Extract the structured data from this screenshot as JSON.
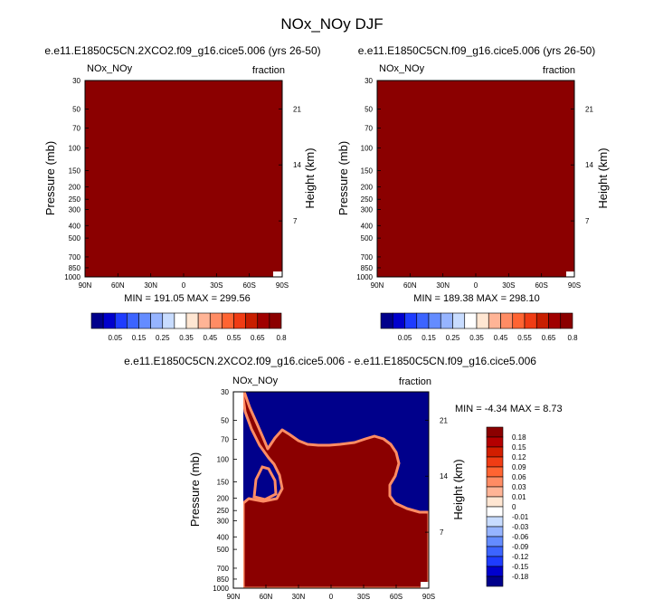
{
  "figure_title": "NOx_NOy DJF",
  "colors": {
    "field": "#8b0000",
    "background": "#ffffff",
    "diff_high": "#8b0000",
    "diff_low": "#00008b"
  },
  "chart_data": [
    {
      "type": "heatmap",
      "title": "e.e11.E1850C5CN.2XCO2.f09_g16.cice5.006 (yrs 26-50)",
      "left_label": "NOx_NOy",
      "right_label": "fraction",
      "ylabel": "Pressure (mb)",
      "y2label": "Height (km)",
      "xticks": [
        "90N",
        "60N",
        "30N",
        "0",
        "30S",
        "60S",
        "90S"
      ],
      "yticks": [
        "30",
        "50",
        "70",
        "100",
        "150",
        "200",
        "250",
        "300",
        "400",
        "500",
        "700",
        "850",
        "1000"
      ],
      "y2ticks": [
        "21",
        "14",
        "7"
      ],
      "stats": "MIN = 191.05   MAX = 299.56",
      "colorbar_labels": [
        "0.05",
        "0.15",
        "0.25",
        "0.35",
        "0.45",
        "0.55",
        "0.65",
        "0.8"
      ],
      "colorbar_colors": [
        "#00008b",
        "#0000cd",
        "#1e3cff",
        "#3c64ff",
        "#648cff",
        "#96b4ff",
        "#c8dcff",
        "#ffffff",
        "#ffe6d2",
        "#ffb496",
        "#ff8c64",
        "#ff6432",
        "#f03c14",
        "#c81e00",
        "#a00000",
        "#8b0000"
      ]
    },
    {
      "type": "heatmap",
      "title": "e.e11.E1850C5CN.f09_g16.cice5.006 (yrs 26-50)",
      "left_label": "NOx_NOy",
      "right_label": "fraction",
      "ylabel": "Pressure (mb)",
      "y2label": "Height (km)",
      "xticks": [
        "90N",
        "60N",
        "30N",
        "0",
        "30S",
        "60S",
        "90S"
      ],
      "yticks": [
        "30",
        "50",
        "70",
        "100",
        "150",
        "200",
        "250",
        "300",
        "400",
        "500",
        "700",
        "850",
        "1000"
      ],
      "y2ticks": [
        "21",
        "14",
        "7"
      ],
      "stats": "MIN = 189.38   MAX = 298.10",
      "colorbar_labels": [
        "0.05",
        "0.15",
        "0.25",
        "0.35",
        "0.45",
        "0.55",
        "0.65",
        "0.8"
      ],
      "colorbar_colors": [
        "#00008b",
        "#0000cd",
        "#1e3cff",
        "#3c64ff",
        "#648cff",
        "#96b4ff",
        "#c8dcff",
        "#ffffff",
        "#ffe6d2",
        "#ffb496",
        "#ff8c64",
        "#ff6432",
        "#f03c14",
        "#c81e00",
        "#a00000",
        "#8b0000"
      ]
    },
    {
      "type": "heatmap",
      "title": "e.e11.E1850C5CN.2XCO2.f09_g16.cice5.006 - e.e11.E1850C5CN.f09_g16.cice5.006",
      "left_label": "NOx_NOy",
      "right_label": "fraction",
      "ylabel": "Pressure (mb)",
      "y2label": "Height (km)",
      "xticks": [
        "90N",
        "60N",
        "30N",
        "0",
        "30S",
        "60S",
        "90S"
      ],
      "yticks": [
        "30",
        "50",
        "70",
        "100",
        "150",
        "200",
        "250",
        "300",
        "400",
        "500",
        "700",
        "850",
        "1000"
      ],
      "y2ticks": [
        "21",
        "14",
        "7"
      ],
      "stats": "MIN =  -4.34   MAX =   8.73",
      "colorbar_labels": [
        "0.18",
        "0.15",
        "0.12",
        "0.09",
        "0.06",
        "0.03",
        "0.01",
        "0",
        "-0.01",
        "-0.03",
        "-0.06",
        "-0.09",
        "-0.12",
        "-0.15",
        "-0.18"
      ],
      "colorbar_colors": [
        "#8b0000",
        "#b40000",
        "#d21e00",
        "#f03c14",
        "#ff6432",
        "#ff8c64",
        "#ffb496",
        "#ffe6d2",
        "#ffffff",
        "#c8dcff",
        "#96b4ff",
        "#648cff",
        "#3c64ff",
        "#1e3cff",
        "#0000cd",
        "#00008b"
      ]
    }
  ]
}
